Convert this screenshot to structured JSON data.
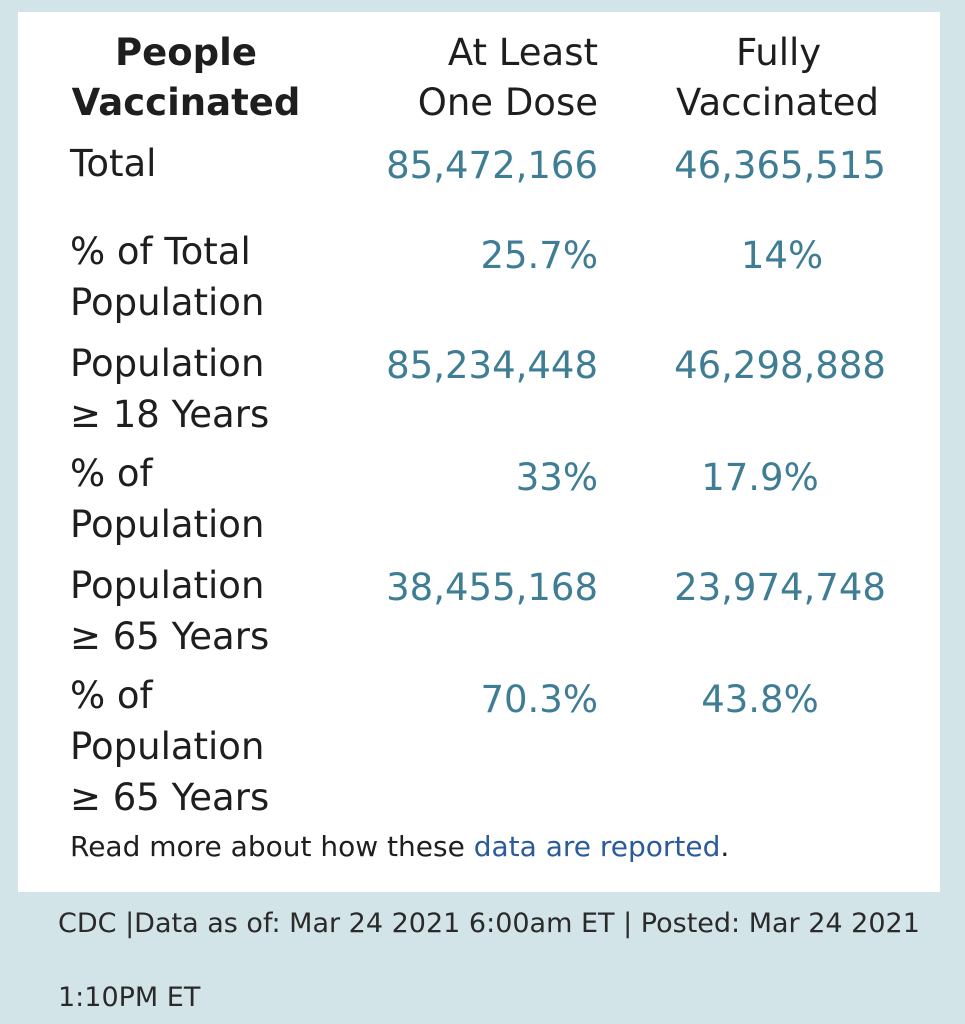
{
  "header": {
    "col1": [
      "People",
      "Vaccinated"
    ],
    "col2": [
      "At Least",
      "One Dose"
    ],
    "col3": [
      "Fully",
      "Vaccinated"
    ]
  },
  "rows": [
    {
      "label": [
        "Total"
      ],
      "one_dose": "85,472,166",
      "fully": "46,365,515"
    },
    {
      "label": [
        "% of Total",
        "Population"
      ],
      "one_dose": "25.7%",
      "fully": "14%"
    },
    {
      "label": [
        "Population",
        "≥ 18 Years"
      ],
      "one_dose": "85,234,448",
      "fully": "46,298,888"
    },
    {
      "label": [
        "% of",
        "Population"
      ],
      "one_dose": "33%",
      "fully": "17.9%"
    },
    {
      "label": [
        "Population",
        "≥ 65 Years"
      ],
      "one_dose": "38,455,168",
      "fully": "23,974,748"
    },
    {
      "label": [
        "% of",
        "Population",
        "≥ 65 Years"
      ],
      "one_dose": "70.3%",
      "fully": "43.8%"
    }
  ],
  "note": {
    "prefix": "Read more about how these ",
    "link": "data are reported",
    "suffix": "."
  },
  "footer": {
    "line1": "CDC |Data as of: Mar 24 2021 6:00am ET | Posted: Mar 24 2021",
    "line2": "1:10PM ET"
  },
  "colors": {
    "background": "#d3e4e8",
    "card": "#ffffff",
    "value": "#3e7d94",
    "link": "#2b5b9b",
    "text": "#1e1e1e"
  }
}
